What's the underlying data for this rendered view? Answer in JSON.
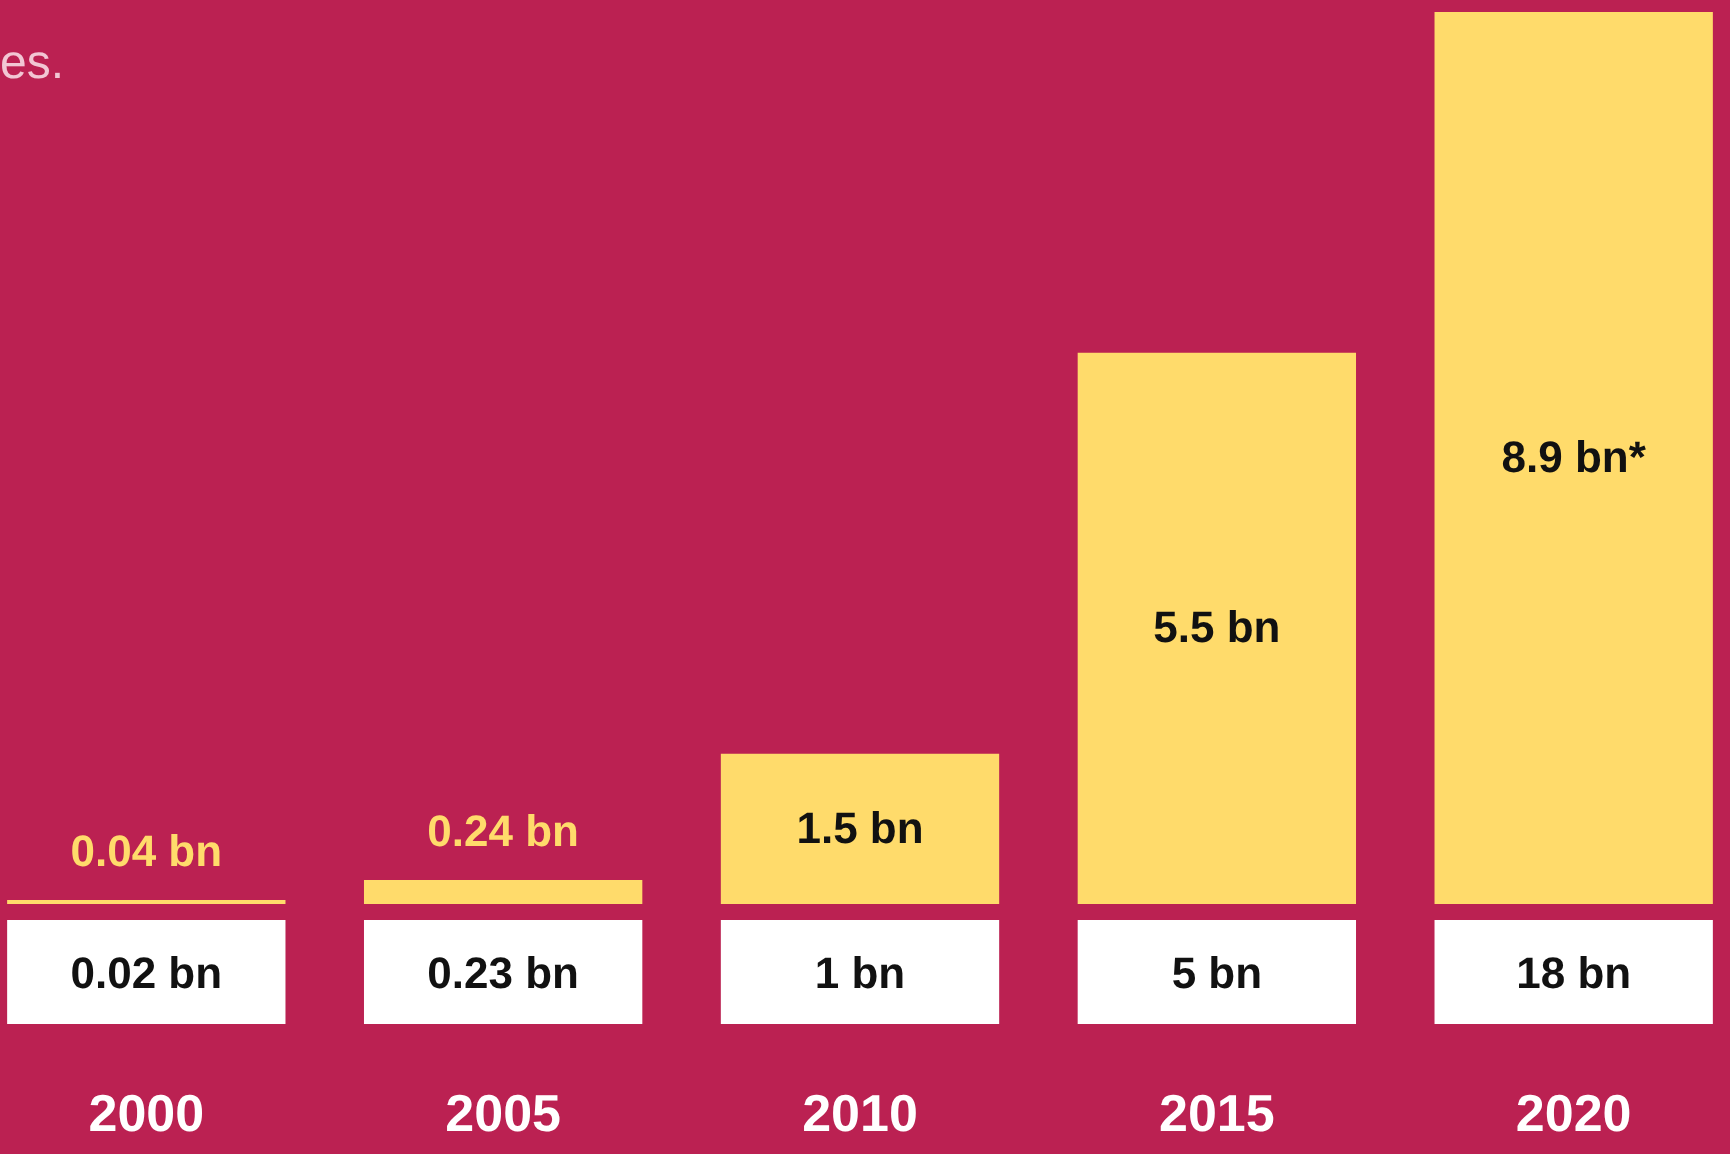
{
  "chart_data": [
    {
      "type": "bar",
      "categories": [
        "2000",
        "2005",
        "2010",
        "2015",
        "2020"
      ],
      "series": [
        {
          "color": "#ffdb6b",
          "values": [
            0.04,
            0.24,
            1.5,
            5.5,
            8.9
          ],
          "value_labels": [
            "0.04 bn",
            "0.24 bn",
            "1.5 bn",
            "5.5 bn",
            "8.9 bn*"
          ]
        }
      ],
      "ylim": [
        0,
        8.9
      ],
      "tick_labels": "x",
      "annotations": [
        "es."
      ]
    },
    {
      "type": "other",
      "annotations": [
        "0.02 bn",
        "0.23 bn",
        "1 bn",
        "5 bn",
        "18 bn"
      ]
    }
  ]
}
